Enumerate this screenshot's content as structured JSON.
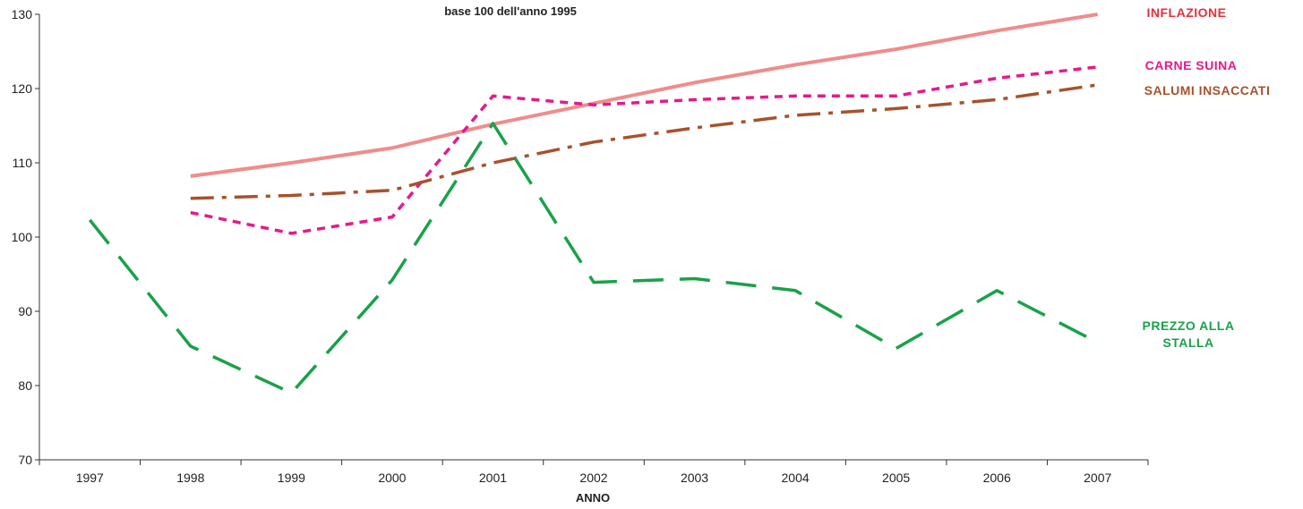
{
  "chart_data": {
    "type": "line",
    "subtitle": "base 100 dell'anno 1995",
    "xlabel": "ANNO",
    "ylabel": "",
    "ylim": [
      70,
      130
    ],
    "yticks": [
      70,
      80,
      90,
      100,
      110,
      120,
      130
    ],
    "categories": [
      "1997",
      "1998",
      "1999",
      "2000",
      "2001",
      "2002",
      "2003",
      "2004",
      "2005",
      "2006",
      "2007"
    ],
    "grid": false,
    "legend": "inline labels at right end of lines",
    "series": [
      {
        "name": "INFLAZIONE",
        "color": "#f08c8c",
        "label_color": "#e5303a",
        "style": "solid",
        "values": [
          null,
          108.2,
          110.0,
          112.0,
          115.2,
          118.0,
          120.8,
          123.2,
          125.3,
          127.8,
          130.0
        ]
      },
      {
        "name": "CARNE SUINA",
        "color": "#e6198c",
        "label_color": "#e6198c",
        "style": "dotted",
        "values": [
          null,
          103.3,
          100.5,
          102.7,
          119.0,
          117.8,
          118.5,
          119.0,
          119.0,
          121.4,
          122.9
        ]
      },
      {
        "name": "SALUMI INSACCATI",
        "color": "#a6522d",
        "label_color": "#a6522d",
        "style": "dashdot",
        "values": [
          null,
          105.2,
          105.6,
          106.3,
          110.0,
          112.8,
          114.7,
          116.4,
          117.3,
          118.5,
          120.5
        ]
      },
      {
        "name_lines": [
          "PREZZO ALLA",
          "STALLA"
        ],
        "color": "#1aa14a",
        "label_color": "#1aa14a",
        "style": "dashed",
        "values": [
          102.3,
          85.3,
          79.0,
          94.2,
          115.3,
          93.9,
          94.4,
          92.8,
          85.0,
          92.8,
          85.8
        ]
      }
    ]
  }
}
